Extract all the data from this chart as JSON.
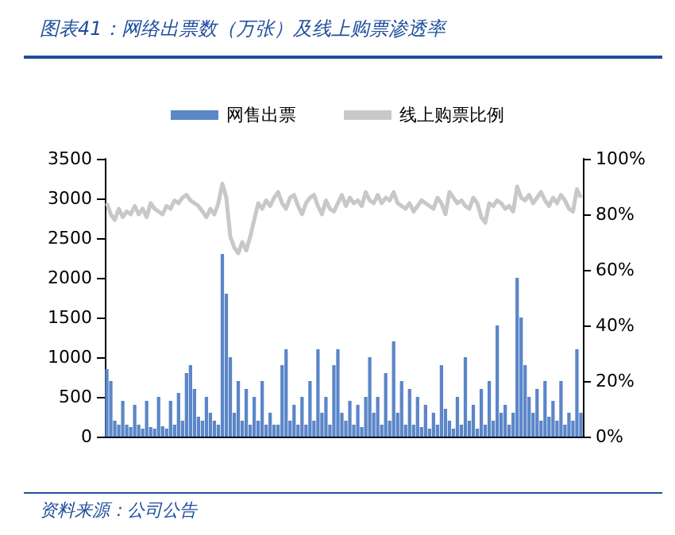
{
  "chart_data": {
    "type": "bar",
    "title": "图表41：网络出票数（万张）及线上购票渗透率",
    "categories": [
      null,
      null,
      null,
      null,
      null,
      null,
      null,
      null,
      null,
      null,
      null,
      null,
      null,
      null,
      null,
      null,
      null,
      null,
      null,
      null,
      null,
      null,
      null,
      null,
      null,
      null,
      null,
      null,
      null,
      null,
      null,
      null,
      null,
      null,
      null,
      null,
      null,
      null,
      null,
      null,
      null,
      null,
      null,
      null,
      null,
      null,
      null,
      null,
      null,
      null,
      null,
      null,
      null,
      null,
      null,
      null,
      null,
      null,
      null,
      null,
      null,
      null,
      null,
      null,
      null,
      null,
      null,
      null,
      null,
      null,
      null,
      null,
      null,
      null,
      null,
      null,
      null,
      null,
      null,
      null,
      null,
      null,
      null,
      null,
      null,
      null,
      null,
      null,
      null,
      null,
      null,
      null,
      null,
      null,
      null,
      null,
      null,
      null,
      null,
      null,
      null,
      null,
      null,
      null,
      null,
      null,
      null,
      null,
      null,
      null,
      null,
      null,
      null,
      null,
      null,
      null,
      null,
      null,
      null,
      null
    ],
    "series": [
      {
        "name": "网售出票",
        "color": "#5b86c8",
        "values": [
          850,
          700,
          200,
          150,
          450,
          150,
          120,
          400,
          150,
          100,
          450,
          120,
          100,
          500,
          130,
          100,
          450,
          150,
          550,
          200,
          800,
          900,
          600,
          250,
          200,
          500,
          300,
          200,
          150,
          2300,
          1800,
          1000,
          300,
          700,
          200,
          600,
          150,
          500,
          200,
          700,
          150,
          300,
          150,
          150,
          900,
          1100,
          200,
          400,
          150,
          500,
          150,
          700,
          200,
          1100,
          300,
          500,
          150,
          900,
          1100,
          300,
          200,
          450,
          150,
          400,
          120,
          500,
          1000,
          300,
          500,
          150,
          800,
          200,
          1200,
          300,
          700,
          150,
          600,
          150,
          500,
          120,
          400,
          100,
          300,
          150,
          900,
          350,
          200,
          100,
          500,
          150,
          1000,
          200,
          400,
          100,
          600,
          150,
          700,
          200,
          1400,
          300,
          400,
          150,
          300,
          2000,
          1500,
          900,
          500,
          300,
          600,
          200,
          700,
          250,
          450,
          200,
          700,
          150,
          300,
          200,
          1100,
          300
        ]
      },
      {
        "name": "线上购票比例",
        "type": "line",
        "axis": "y2",
        "color": "#c8c8c8",
        "values": [
          84,
          80,
          78,
          82,
          79,
          81,
          80,
          83,
          80,
          82,
          79,
          84,
          82,
          81,
          80,
          83,
          82,
          85,
          84,
          86,
          87,
          85,
          84,
          83,
          81,
          79,
          82,
          80,
          84,
          91,
          86,
          72,
          68,
          66,
          70,
          67,
          72,
          78,
          84,
          82,
          85,
          83,
          86,
          88,
          84,
          82,
          86,
          87,
          83,
          80,
          84,
          86,
          87,
          83,
          80,
          85,
          82,
          81,
          84,
          87,
          83,
          86,
          84,
          85,
          83,
          88,
          85,
          84,
          87,
          84,
          86,
          85,
          88,
          84,
          83,
          82,
          84,
          81,
          83,
          85,
          84,
          83,
          82,
          86,
          84,
          80,
          88,
          86,
          84,
          85,
          83,
          82,
          86,
          84,
          79,
          77,
          84,
          83,
          85,
          84,
          82,
          83,
          81,
          90,
          86,
          85,
          87,
          84,
          86,
          88,
          85,
          83,
          86,
          84,
          87,
          85,
          82,
          81,
          89,
          86
        ]
      }
    ],
    "ylim": [
      0,
      3500
    ],
    "yticks": [
      0,
      500,
      1000,
      1500,
      2000,
      2500,
      3000,
      3500
    ],
    "y2lim": [
      0,
      100
    ],
    "y2ticks": [
      {
        "value": 0,
        "label": "0%"
      },
      {
        "value": 20,
        "label": "20%"
      },
      {
        "value": 40,
        "label": "40%"
      },
      {
        "value": 60,
        "label": "60%"
      },
      {
        "value": 80,
        "label": "80%"
      },
      {
        "value": 100,
        "label": "100%"
      }
    ],
    "legend": "top",
    "grid": false,
    "marker": "none",
    "line_style": "solid",
    "annotations": [
      "资料来源：公司公告"
    ]
  }
}
